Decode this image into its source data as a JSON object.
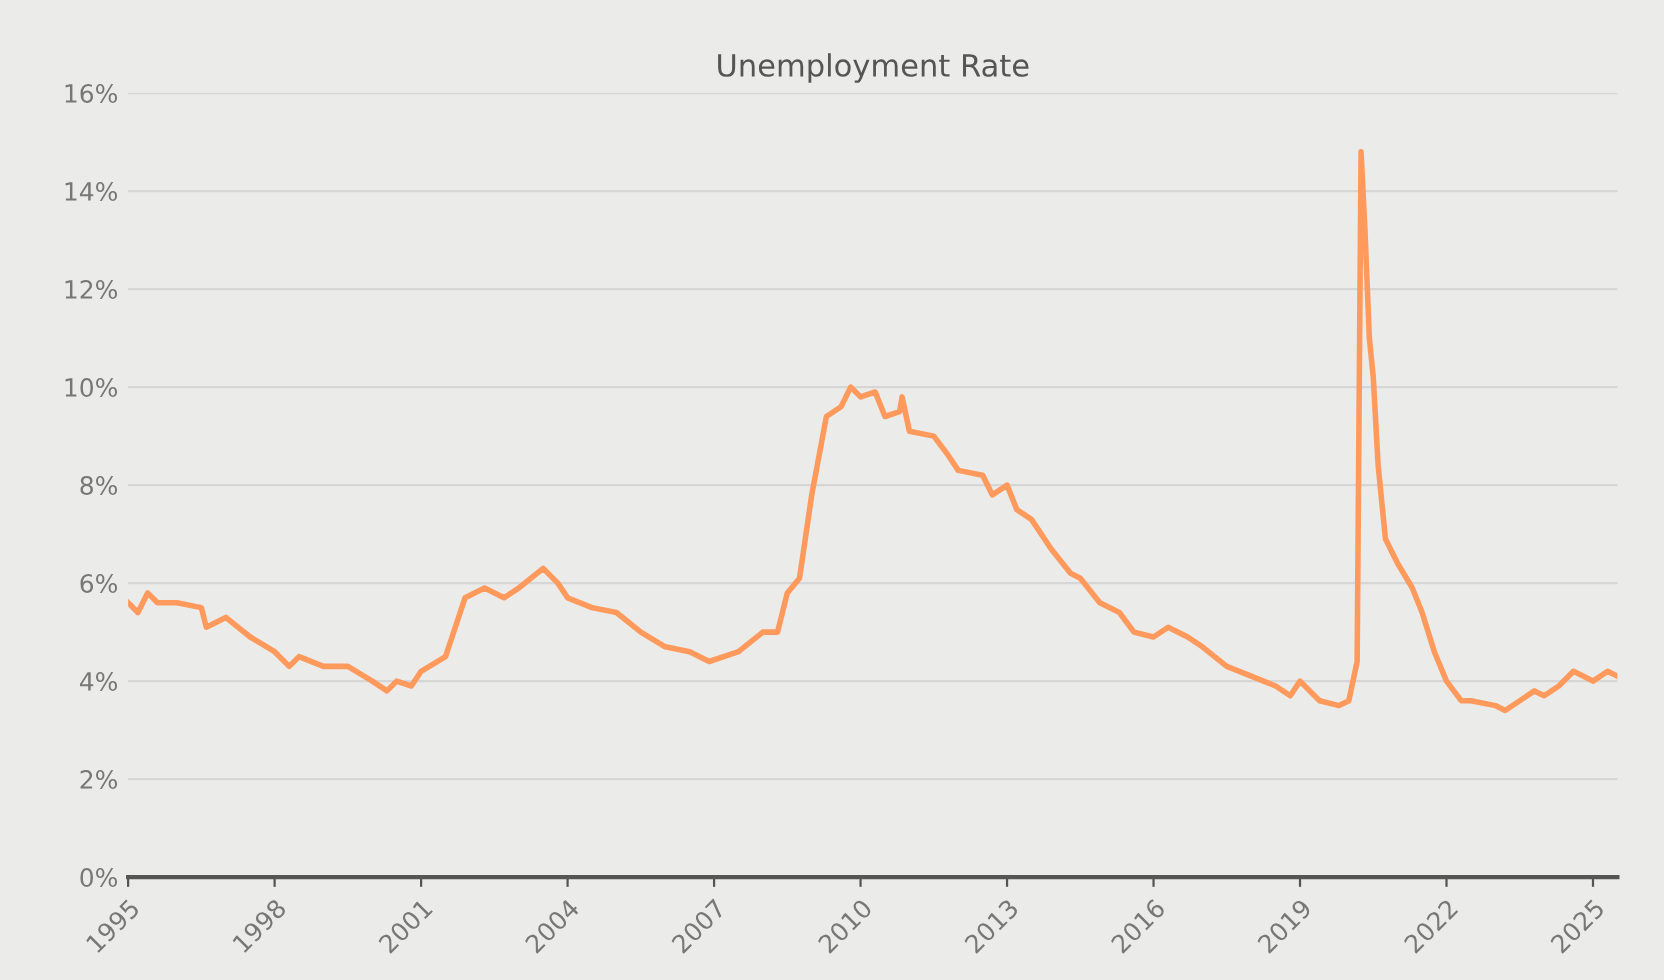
{
  "chart_data": {
    "type": "line",
    "title": "Unemployment Rate",
    "xlim": [
      1995,
      2025.5
    ],
    "xticks": [
      1995,
      1998,
      2001,
      2004,
      2007,
      2010,
      2013,
      2016,
      2019,
      2022,
      2025
    ],
    "ylim": [
      0,
      16
    ],
    "yticks": [
      {
        "value": 0,
        "label": "0%"
      },
      {
        "value": 2,
        "label": "2%"
      },
      {
        "value": 4,
        "label": "4%"
      },
      {
        "value": 6,
        "label": "6%"
      },
      {
        "value": 8,
        "label": "8%"
      },
      {
        "value": 10,
        "label": "10%"
      },
      {
        "value": 12,
        "label": "12%"
      },
      {
        "value": 14,
        "label": "14%"
      },
      {
        "value": 16,
        "label": "16%"
      }
    ],
    "grid": "y",
    "marker": "none",
    "line_style": "solid",
    "series": [
      {
        "color": "#ff9a5c",
        "x": [
          1995.0,
          1995.2,
          1995.4,
          1995.6,
          1996.0,
          1996.5,
          1996.6,
          1997.0,
          1997.5,
          1998.0,
          1998.3,
          1998.5,
          1999.0,
          1999.5,
          2000.0,
          2000.3,
          2000.5,
          2000.8,
          2001.0,
          2001.5,
          2001.9,
          2002.3,
          2002.7,
          2003.0,
          2003.5,
          2003.8,
          2004.0,
          2004.5,
          2005.0,
          2005.5,
          2006.0,
          2006.5,
          2006.9,
          2007.5,
          2008.0,
          2008.3,
          2008.5,
          2008.75,
          2009.0,
          2009.3,
          2009.6,
          2009.8,
          2010.0,
          2010.3,
          2010.5,
          2010.8,
          2010.85,
          2011.0,
          2011.5,
          2011.8,
          2012.0,
          2012.5,
          2012.7,
          2013.0,
          2013.2,
          2013.5,
          2013.9,
          2014.3,
          2014.5,
          2014.9,
          2015.3,
          2015.6,
          2016.0,
          2016.3,
          2016.7,
          2017.0,
          2017.5,
          2018.0,
          2018.5,
          2018.8,
          2019.0,
          2019.4,
          2019.8,
          2020.0,
          2020.17,
          2020.25,
          2020.33,
          2020.42,
          2020.5,
          2020.6,
          2020.75,
          2021.0,
          2021.3,
          2021.5,
          2021.75,
          2022.0,
          2022.3,
          2022.5,
          2023.0,
          2023.2,
          2023.5,
          2023.8,
          2024.0,
          2024.3,
          2024.6,
          2025.0,
          2025.3,
          2025.5
        ],
        "values": [
          5.6,
          5.4,
          5.8,
          5.6,
          5.6,
          5.5,
          5.1,
          5.3,
          4.9,
          4.6,
          4.3,
          4.5,
          4.3,
          4.3,
          4.0,
          3.8,
          4.0,
          3.9,
          4.2,
          4.5,
          5.7,
          5.9,
          5.7,
          5.9,
          6.3,
          6.0,
          5.7,
          5.5,
          5.4,
          5.0,
          4.7,
          4.6,
          4.4,
          4.6,
          5.0,
          5.0,
          5.8,
          6.1,
          7.8,
          9.4,
          9.6,
          10.0,
          9.8,
          9.9,
          9.4,
          9.5,
          9.8,
          9.1,
          9.0,
          8.6,
          8.3,
          8.2,
          7.8,
          8.0,
          7.5,
          7.3,
          6.7,
          6.2,
          6.1,
          5.6,
          5.4,
          5.0,
          4.9,
          5.1,
          4.9,
          4.7,
          4.3,
          4.1,
          3.9,
          3.7,
          4.0,
          3.6,
          3.5,
          3.6,
          4.4,
          14.8,
          13.2,
          11.0,
          10.2,
          8.4,
          6.9,
          6.4,
          5.9,
          5.4,
          4.6,
          4.0,
          3.6,
          3.6,
          3.5,
          3.4,
          3.6,
          3.8,
          3.7,
          3.9,
          4.2,
          4.0,
          4.2,
          4.1
        ]
      }
    ]
  }
}
